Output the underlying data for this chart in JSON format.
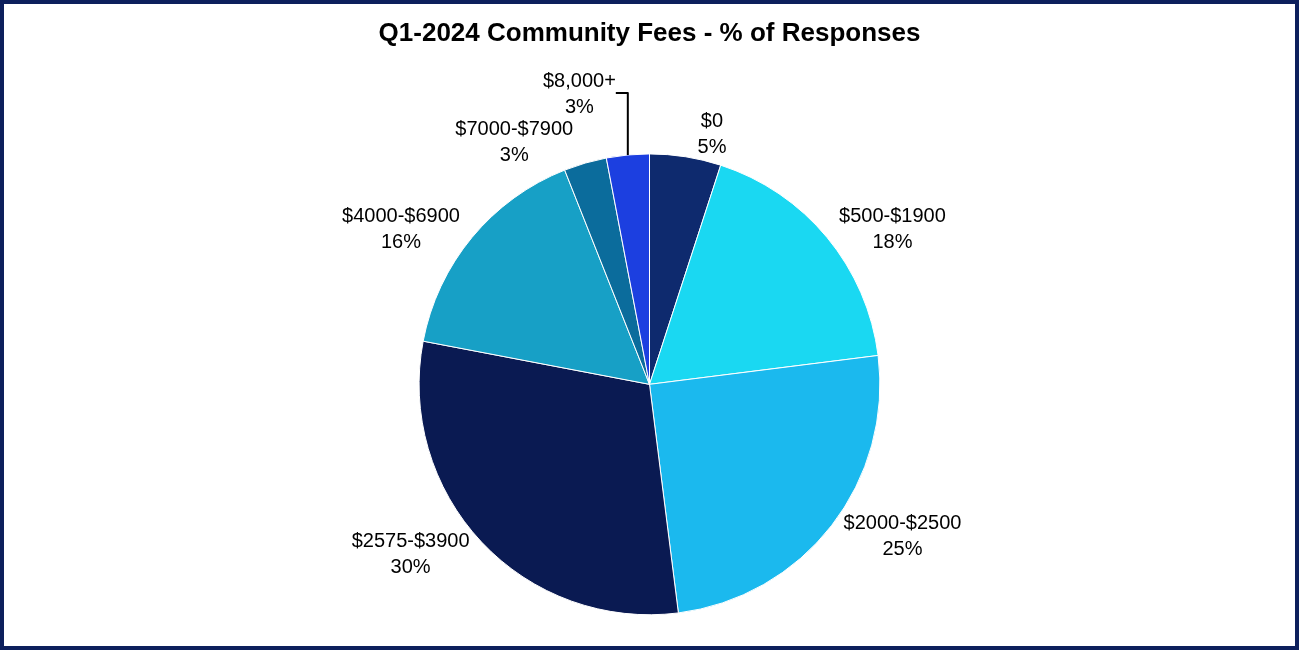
{
  "chart_data": {
    "type": "pie",
    "title": "Q1-2024 Community Fees - % of Responses",
    "categories": [
      "$0",
      "$500-$1900",
      "$2000-$2500",
      "$2575-$3900",
      "$4000-$6900",
      "$7000-$7900",
      "$8,000+"
    ],
    "values": [
      5,
      18,
      25,
      30,
      16,
      3,
      3
    ],
    "value_labels": [
      "5%",
      "18%",
      "25%",
      "30%",
      "16%",
      "3%",
      "3%"
    ],
    "colors": [
      "#0e2a6e",
      "#1ad8f2",
      "#1bb9ee",
      "#0a1a52",
      "#17a0c6",
      "#0b6c9c",
      "#1c3fe0"
    ],
    "legend": false
  }
}
